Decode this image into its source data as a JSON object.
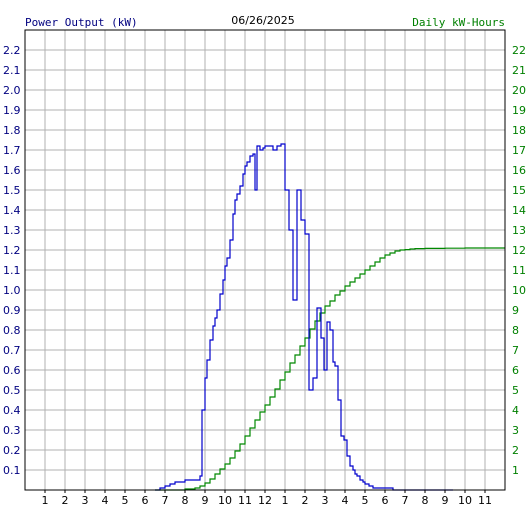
{
  "chart_data": {
    "type": "line",
    "title": "06/26/2025",
    "ylabel_left": "Power Output (kW)",
    "ylabel_right": "Daily kW-Hours",
    "x_tick_labels": [
      "1",
      "2",
      "3",
      "4",
      "5",
      "6",
      "7",
      "8",
      "9",
      "10",
      "11",
      "12",
      "1",
      "2",
      "3",
      "4",
      "5",
      "6",
      "7",
      "8",
      "9",
      "10",
      "11"
    ],
    "y_left_ticks": [
      "0.1",
      "0.2",
      "0.3",
      "0.4",
      "0.5",
      "0.6",
      "0.7",
      "0.8",
      "0.9",
      "1.0",
      "1.1",
      "1.2",
      "1.3",
      "1.4",
      "1.5",
      "1.6",
      "1.7",
      "1.8",
      "1.9",
      "2.0",
      "2.1",
      "2.2"
    ],
    "y_right_ticks": [
      "1",
      "2",
      "3",
      "4",
      "5",
      "6",
      "7",
      "8",
      "9",
      "10",
      "11",
      "12",
      "13",
      "14",
      "15",
      "16",
      "17",
      "18",
      "19",
      "20",
      "21",
      "22"
    ],
    "xlim_hours": [
      0,
      24
    ],
    "ylim_left": [
      0,
      2.3
    ],
    "ylim_right": [
      0,
      23
    ],
    "grid": true,
    "colors": {
      "power": "#0000cc",
      "energy": "#008800",
      "left_axis_text": "#000080",
      "right_axis_text": "#008000",
      "grid": "#b0b0b0",
      "frame": "#000000"
    },
    "series": [
      {
        "name": "Power Output (kW)",
        "axis": "left",
        "x_hours": [
          6.5,
          6.75,
          7.0,
          7.25,
          7.5,
          7.75,
          8.0,
          8.25,
          8.5,
          8.75,
          8.85,
          9.0,
          9.1,
          9.25,
          9.4,
          9.5,
          9.6,
          9.75,
          9.9,
          10.0,
          10.1,
          10.25,
          10.4,
          10.5,
          10.6,
          10.75,
          10.9,
          11.0,
          11.1,
          11.25,
          11.4,
          11.5,
          11.6,
          11.75,
          11.9,
          12.0,
          12.2,
          12.4,
          12.6,
          12.8,
          13.0,
          13.2,
          13.4,
          13.6,
          13.8,
          14.0,
          14.2,
          14.4,
          14.6,
          14.8,
          14.95,
          15.1,
          15.25,
          15.4,
          15.5,
          15.65,
          15.8,
          15.95,
          16.1,
          16.25,
          16.4,
          16.5,
          16.6,
          16.75,
          16.9,
          17.0,
          17.2,
          17.4,
          17.6,
          17.8,
          18.0,
          18.2,
          18.4,
          18.6,
          18.8,
          19.0,
          19.2,
          19.4,
          19.6,
          19.8,
          20.0,
          20.2,
          20.4,
          20.6,
          20.8,
          21.0,
          21.2,
          21.4
        ],
        "values": [
          0.0,
          0.01,
          0.02,
          0.03,
          0.04,
          0.04,
          0.05,
          0.05,
          0.05,
          0.07,
          0.4,
          0.56,
          0.65,
          0.75,
          0.82,
          0.86,
          0.9,
          0.98,
          1.05,
          1.12,
          1.16,
          1.25,
          1.38,
          1.45,
          1.48,
          1.52,
          1.58,
          1.62,
          1.64,
          1.67,
          1.68,
          1.5,
          1.72,
          1.7,
          1.71,
          1.72,
          1.72,
          1.7,
          1.72,
          1.73,
          1.5,
          1.3,
          0.95,
          1.5,
          1.35,
          1.28,
          0.5,
          0.56,
          0.91,
          0.76,
          0.6,
          0.84,
          0.8,
          0.64,
          0.62,
          0.45,
          0.27,
          0.25,
          0.17,
          0.12,
          0.1,
          0.08,
          0.07,
          0.05,
          0.04,
          0.03,
          0.02,
          0.01,
          0.01,
          0.01,
          0.01,
          0.01,
          0.0,
          0.0,
          0.0,
          0.0,
          0.0,
          0.0,
          0.0,
          0.0,
          0.0,
          0.0,
          0.0,
          0.0,
          0.0,
          0.0,
          0.0,
          0.0
        ]
      },
      {
        "name": "Daily kW-Hours",
        "axis": "right",
        "x_hours": [
          6.5,
          8.0,
          8.5,
          8.75,
          9.0,
          9.25,
          9.5,
          9.75,
          10.0,
          10.25,
          10.5,
          10.75,
          11.0,
          11.25,
          11.5,
          11.75,
          12.0,
          12.25,
          12.5,
          12.75,
          13.0,
          13.25,
          13.5,
          13.75,
          14.0,
          14.25,
          14.5,
          14.75,
          15.0,
          15.25,
          15.5,
          15.75,
          16.0,
          16.25,
          16.5,
          16.75,
          17.0,
          17.25,
          17.5,
          17.75,
          18.0,
          18.25,
          18.5,
          18.75,
          19.0,
          19.25,
          19.5,
          20.0,
          21.0,
          22.0,
          23.0,
          24.0
        ],
        "values": [
          0.0,
          0.05,
          0.1,
          0.2,
          0.35,
          0.55,
          0.8,
          1.05,
          1.3,
          1.6,
          1.95,
          2.3,
          2.7,
          3.1,
          3.5,
          3.9,
          4.25,
          4.65,
          5.05,
          5.5,
          5.9,
          6.35,
          6.75,
          7.2,
          7.6,
          8.05,
          8.45,
          8.85,
          9.2,
          9.45,
          9.75,
          9.95,
          10.2,
          10.4,
          10.6,
          10.8,
          11.0,
          11.2,
          11.4,
          11.6,
          11.75,
          11.85,
          11.95,
          12.0,
          12.02,
          12.05,
          12.07,
          12.08,
          12.09,
          12.1,
          12.1,
          12.1
        ]
      }
    ]
  }
}
